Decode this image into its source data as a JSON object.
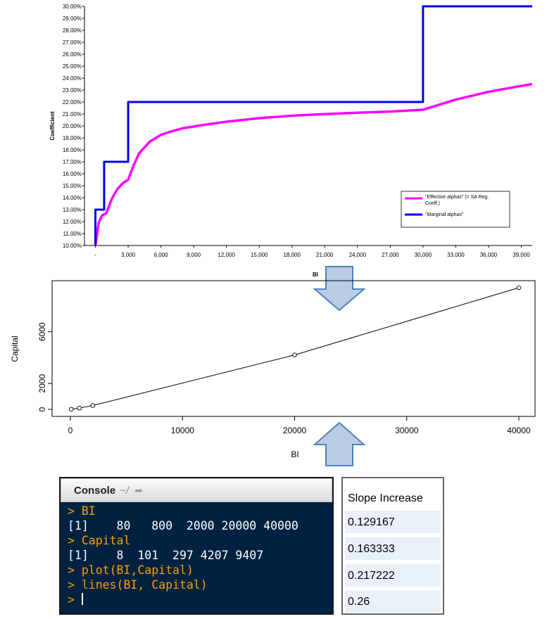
{
  "chart_data": [
    {
      "type": "line",
      "xlabel": "BI",
      "ylabel": "Coefficient",
      "xlim": [
        -1000,
        40000
      ],
      "ylim": [
        0.1,
        0.3
      ],
      "x_ticks": [
        0,
        3000,
        6000,
        9000,
        12000,
        15000,
        18000,
        21000,
        24000,
        27000,
        30000,
        33000,
        36000,
        39000
      ],
      "x_tick_labels": [
        "-",
        "3,000",
        "6,000",
        "9,000",
        "12,000",
        "15,000",
        "18,000",
        "21,000",
        "24,000",
        "27,000",
        "30,000",
        "33,000",
        "36,000",
        "39,000"
      ],
      "y_ticks": [
        0.1,
        0.11,
        0.12,
        0.13,
        0.14,
        0.15,
        0.16,
        0.17,
        0.18,
        0.19,
        0.2,
        0.21,
        0.22,
        0.23,
        0.24,
        0.25,
        0.26,
        0.27,
        0.28,
        0.29,
        0.3
      ],
      "y_tick_labels": [
        "10.00%",
        "11.00%",
        "12.00%",
        "13.00%",
        "14.00%",
        "15.00%",
        "16.00%",
        "17.00%",
        "18.00%",
        "19.00%",
        "20.00%",
        "21.00%",
        "22.00%",
        "23.00%",
        "24.00%",
        "25.00%",
        "26.00%",
        "27.00%",
        "28.00%",
        "29.00%",
        "30.00%"
      ],
      "legend_position": "bottom-right",
      "grid": false,
      "series": [
        {
          "name": "\"Effective alphas\" (= SA Reg. Coeff.)",
          "color": "#ff00ff",
          "x": [
            0,
            80,
            300,
            600,
            1000,
            1500,
            2000,
            2500,
            3000,
            3500,
            4000,
            5000,
            6000,
            7000,
            8000,
            9000,
            10000,
            12000,
            15000,
            18000,
            20000,
            24000,
            27000,
            30000,
            33000,
            36000,
            39000,
            40000
          ],
          "y": [
            0.1,
            0.105,
            0.119,
            0.125,
            0.127,
            0.139,
            0.147,
            0.152,
            0.155,
            0.167,
            0.177,
            0.187,
            0.1925,
            0.1955,
            0.198,
            0.1995,
            0.201,
            0.2035,
            0.2065,
            0.2085,
            0.2095,
            0.211,
            0.212,
            0.2135,
            0.222,
            0.2285,
            0.2335,
            0.235
          ]
        },
        {
          "name": "\"Marginal alphas\"",
          "color": "#0000ee",
          "x": [
            0,
            0,
            800,
            800,
            2000,
            2000,
            3000,
            3000,
            30000,
            30000,
            40000
          ],
          "y": [
            0.1,
            0.13,
            0.13,
            0.17,
            0.17,
            0.17,
            0.17,
            0.22,
            0.22,
            0.3,
            0.3
          ]
        }
      ]
    },
    {
      "type": "scatter",
      "xlabel": "BI",
      "ylabel": "Capital",
      "xlim": [
        0,
        40000
      ],
      "ylim": [
        0,
        9407
      ],
      "x_ticks": [
        0,
        10000,
        20000,
        30000,
        40000
      ],
      "x_tick_labels": [
        "0",
        "10000",
        "20000",
        "30000",
        "40000"
      ],
      "y_ticks": [
        0,
        2000,
        6000
      ],
      "y_tick_labels": [
        "0",
        "2000",
        "6000"
      ],
      "grid": false,
      "x": [
        80,
        800,
        2000,
        20000,
        40000
      ],
      "y": [
        8,
        101,
        297,
        4207,
        9407
      ]
    }
  ],
  "console": {
    "title": "Console",
    "path": "~/",
    "lines": [
      {
        "kind": "cmd",
        "text": "> BI"
      },
      {
        "kind": "out",
        "text": "[1]    80   800  2000 20000 40000"
      },
      {
        "kind": "cmd",
        "text": "> Capital"
      },
      {
        "kind": "out",
        "text": "[1]    8  101  297 4207 9407"
      },
      {
        "kind": "cmd",
        "text": "> plot(BI,Capital)"
      },
      {
        "kind": "cmd",
        "text": "> lines(BI, Capital)"
      }
    ],
    "prompt": "> "
  },
  "slope_table": {
    "header": "Slope Increase",
    "rows": [
      "0.129167",
      "0.163333",
      "0.217222",
      "0.26"
    ]
  },
  "colors": {
    "effective": "#ff00ff",
    "marginal": "#0000ee",
    "arrow_fill": "#b8cce4",
    "arrow_stroke": "#4f81bd",
    "console_bg": "#002240",
    "console_cmd": "#ff9d00"
  }
}
